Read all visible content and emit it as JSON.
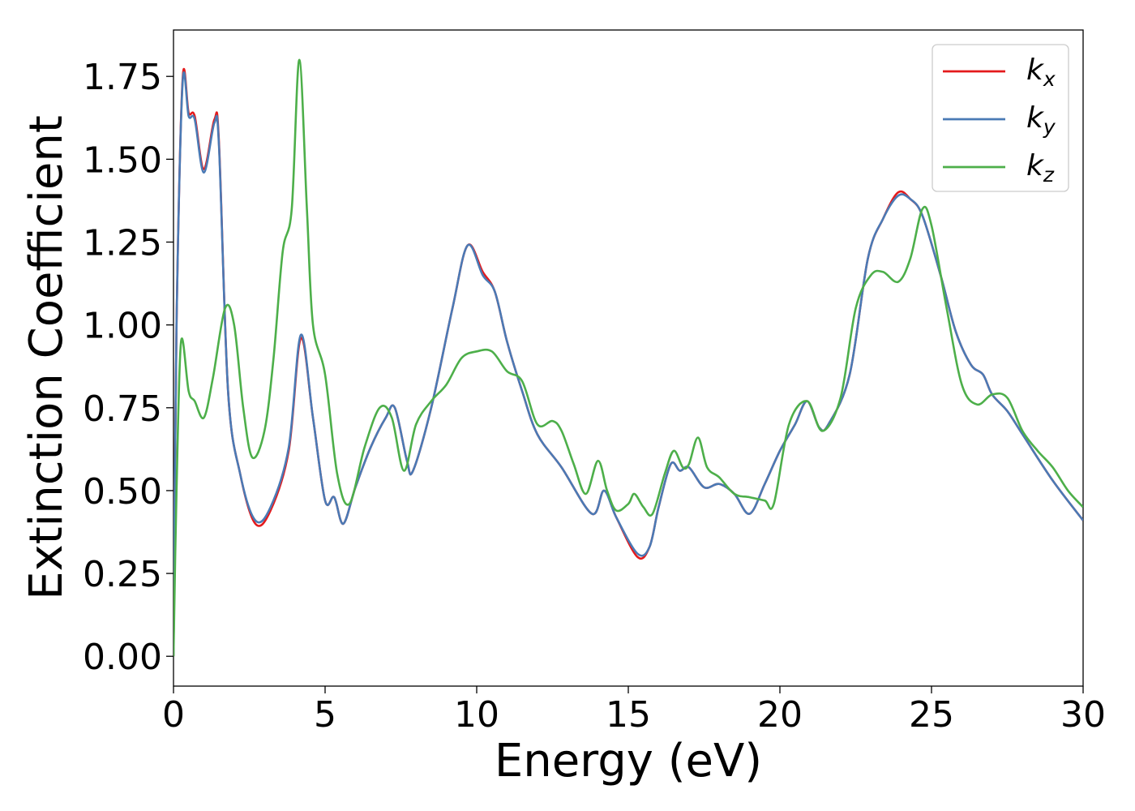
{
  "chart_data": {
    "type": "line",
    "title": "",
    "xlabel": "Energy (eV)",
    "ylabel": "Extinction Coefficient",
    "xlim": [
      0,
      30
    ],
    "ylim": [
      -0.09,
      1.89
    ],
    "xticks": [
      0,
      5,
      10,
      15,
      20,
      25,
      30
    ],
    "xtick_labels": [
      "0",
      "5",
      "10",
      "15",
      "20",
      "25",
      "30"
    ],
    "yticks": [
      0,
      0.25,
      0.5,
      0.75,
      1.0,
      1.25,
      1.5,
      1.75
    ],
    "ytick_labels": [
      "0.00",
      "0.25",
      "0.50",
      "0.75",
      "1.00",
      "1.25",
      "1.50",
      "1.75"
    ],
    "grid": false,
    "legend_position": "top-right",
    "series": [
      {
        "name": "k_x",
        "label_base": "k",
        "label_sub": "x",
        "color": "#e41a1c",
        "points": [
          [
            0,
            0
          ],
          [
            0.1,
            1.0
          ],
          [
            0.3,
            1.74
          ],
          [
            0.5,
            1.64
          ],
          [
            0.7,
            1.63
          ],
          [
            1.0,
            1.47
          ],
          [
            1.35,
            1.62
          ],
          [
            1.5,
            1.55
          ],
          [
            1.8,
            0.8
          ],
          [
            2.2,
            0.55
          ],
          [
            2.7,
            0.4
          ],
          [
            3.2,
            0.44
          ],
          [
            3.8,
            0.62
          ],
          [
            4.2,
            0.96
          ],
          [
            4.6,
            0.72
          ],
          [
            5.0,
            0.47
          ],
          [
            5.3,
            0.48
          ],
          [
            5.6,
            0.4
          ],
          [
            6.0,
            0.51
          ],
          [
            6.5,
            0.63
          ],
          [
            7.0,
            0.72
          ],
          [
            7.3,
            0.75
          ],
          [
            7.7,
            0.59
          ],
          [
            7.9,
            0.56
          ],
          [
            8.5,
            0.75
          ],
          [
            9.2,
            1.05
          ],
          [
            9.7,
            1.24
          ],
          [
            10.2,
            1.16
          ],
          [
            10.6,
            1.1
          ],
          [
            11.0,
            0.95
          ],
          [
            11.5,
            0.8
          ],
          [
            12.0,
            0.67
          ],
          [
            12.8,
            0.57
          ],
          [
            13.8,
            0.43
          ],
          [
            14.2,
            0.5
          ],
          [
            14.6,
            0.42
          ],
          [
            15.3,
            0.3
          ],
          [
            15.7,
            0.33
          ],
          [
            16.0,
            0.45
          ],
          [
            16.4,
            0.58
          ],
          [
            16.7,
            0.56
          ],
          [
            17.0,
            0.57
          ],
          [
            17.5,
            0.51
          ],
          [
            18.0,
            0.52
          ],
          [
            18.5,
            0.49
          ],
          [
            19.0,
            0.43
          ],
          [
            19.5,
            0.52
          ],
          [
            20.0,
            0.62
          ],
          [
            20.5,
            0.7
          ],
          [
            20.9,
            0.77
          ],
          [
            21.3,
            0.69
          ],
          [
            21.6,
            0.7
          ],
          [
            22.3,
            0.85
          ],
          [
            22.9,
            1.2
          ],
          [
            23.4,
            1.32
          ],
          [
            23.9,
            1.4
          ],
          [
            24.3,
            1.38
          ],
          [
            24.7,
            1.33
          ],
          [
            25.3,
            1.15
          ],
          [
            25.8,
            0.98
          ],
          [
            26.3,
            0.88
          ],
          [
            26.7,
            0.85
          ],
          [
            27.0,
            0.79
          ],
          [
            27.5,
            0.74
          ],
          [
            28.0,
            0.67
          ],
          [
            29.0,
            0.53
          ],
          [
            30.0,
            0.41
          ]
        ]
      },
      {
        "name": "k_y",
        "label_base": "k",
        "label_sub": "y",
        "color": "#4a7ab5",
        "points": [
          [
            0,
            0
          ],
          [
            0.1,
            1.0
          ],
          [
            0.3,
            1.73
          ],
          [
            0.5,
            1.63
          ],
          [
            0.7,
            1.62
          ],
          [
            1.0,
            1.46
          ],
          [
            1.35,
            1.61
          ],
          [
            1.5,
            1.54
          ],
          [
            1.8,
            0.8
          ],
          [
            2.2,
            0.55
          ],
          [
            2.7,
            0.41
          ],
          [
            3.2,
            0.45
          ],
          [
            3.8,
            0.63
          ],
          [
            4.2,
            0.97
          ],
          [
            4.6,
            0.72
          ],
          [
            5.0,
            0.47
          ],
          [
            5.3,
            0.48
          ],
          [
            5.6,
            0.4
          ],
          [
            6.0,
            0.51
          ],
          [
            6.5,
            0.63
          ],
          [
            7.0,
            0.72
          ],
          [
            7.3,
            0.75
          ],
          [
            7.7,
            0.59
          ],
          [
            7.9,
            0.56
          ],
          [
            8.5,
            0.75
          ],
          [
            9.2,
            1.05
          ],
          [
            9.7,
            1.24
          ],
          [
            10.2,
            1.15
          ],
          [
            10.6,
            1.1
          ],
          [
            11.0,
            0.95
          ],
          [
            11.5,
            0.8
          ],
          [
            12.0,
            0.67
          ],
          [
            12.8,
            0.57
          ],
          [
            13.8,
            0.43
          ],
          [
            14.2,
            0.5
          ],
          [
            14.6,
            0.42
          ],
          [
            15.3,
            0.31
          ],
          [
            15.7,
            0.33
          ],
          [
            16.0,
            0.45
          ],
          [
            16.4,
            0.58
          ],
          [
            16.7,
            0.56
          ],
          [
            17.0,
            0.57
          ],
          [
            17.5,
            0.51
          ],
          [
            18.0,
            0.52
          ],
          [
            18.5,
            0.49
          ],
          [
            19.0,
            0.43
          ],
          [
            19.5,
            0.52
          ],
          [
            20.0,
            0.62
          ],
          [
            20.5,
            0.7
          ],
          [
            20.9,
            0.77
          ],
          [
            21.3,
            0.69
          ],
          [
            21.6,
            0.7
          ],
          [
            22.3,
            0.85
          ],
          [
            22.9,
            1.2
          ],
          [
            23.4,
            1.32
          ],
          [
            23.9,
            1.39
          ],
          [
            24.3,
            1.38
          ],
          [
            24.7,
            1.33
          ],
          [
            25.3,
            1.15
          ],
          [
            25.8,
            0.98
          ],
          [
            26.3,
            0.88
          ],
          [
            26.7,
            0.85
          ],
          [
            27.0,
            0.79
          ],
          [
            27.5,
            0.74
          ],
          [
            28.0,
            0.67
          ],
          [
            29.0,
            0.53
          ],
          [
            30.0,
            0.41
          ]
        ]
      },
      {
        "name": "k_z",
        "label_base": "k",
        "label_sub": "z",
        "color": "#4daf4a",
        "points": [
          [
            0,
            0
          ],
          [
            0.1,
            0.5
          ],
          [
            0.25,
            0.95
          ],
          [
            0.5,
            0.8
          ],
          [
            0.7,
            0.77
          ],
          [
            1.0,
            0.72
          ],
          [
            1.3,
            0.84
          ],
          [
            1.7,
            1.05
          ],
          [
            2.0,
            1.0
          ],
          [
            2.3,
            0.75
          ],
          [
            2.6,
            0.6
          ],
          [
            3.0,
            0.68
          ],
          [
            3.3,
            0.9
          ],
          [
            3.6,
            1.22
          ],
          [
            3.9,
            1.35
          ],
          [
            4.15,
            1.8
          ],
          [
            4.4,
            1.35
          ],
          [
            4.6,
            1.0
          ],
          [
            5.0,
            0.85
          ],
          [
            5.4,
            0.55
          ],
          [
            5.8,
            0.46
          ],
          [
            6.3,
            0.63
          ],
          [
            6.8,
            0.75
          ],
          [
            7.2,
            0.72
          ],
          [
            7.6,
            0.56
          ],
          [
            8.0,
            0.7
          ],
          [
            8.5,
            0.77
          ],
          [
            9.0,
            0.82
          ],
          [
            9.5,
            0.9
          ],
          [
            10.0,
            0.92
          ],
          [
            10.5,
            0.92
          ],
          [
            11.0,
            0.86
          ],
          [
            11.5,
            0.83
          ],
          [
            12.0,
            0.7
          ],
          [
            12.5,
            0.71
          ],
          [
            12.8,
            0.68
          ],
          [
            13.2,
            0.58
          ],
          [
            13.6,
            0.49
          ],
          [
            14.0,
            0.59
          ],
          [
            14.3,
            0.5
          ],
          [
            14.6,
            0.44
          ],
          [
            15.0,
            0.46
          ],
          [
            15.2,
            0.49
          ],
          [
            15.5,
            0.45
          ],
          [
            15.8,
            0.43
          ],
          [
            16.2,
            0.55
          ],
          [
            16.5,
            0.62
          ],
          [
            16.8,
            0.57
          ],
          [
            17.0,
            0.58
          ],
          [
            17.3,
            0.66
          ],
          [
            17.6,
            0.57
          ],
          [
            18.0,
            0.54
          ],
          [
            18.5,
            0.49
          ],
          [
            19.0,
            0.48
          ],
          [
            19.5,
            0.47
          ],
          [
            19.8,
            0.46
          ],
          [
            20.3,
            0.7
          ],
          [
            20.9,
            0.77
          ],
          [
            21.4,
            0.68
          ],
          [
            22.0,
            0.78
          ],
          [
            22.5,
            1.05
          ],
          [
            23.0,
            1.15
          ],
          [
            23.4,
            1.16
          ],
          [
            23.9,
            1.13
          ],
          [
            24.3,
            1.2
          ],
          [
            24.7,
            1.35
          ],
          [
            25.0,
            1.3
          ],
          [
            25.5,
            1.05
          ],
          [
            26.0,
            0.82
          ],
          [
            26.5,
            0.76
          ],
          [
            27.0,
            0.79
          ],
          [
            27.5,
            0.78
          ],
          [
            28.0,
            0.68
          ],
          [
            28.5,
            0.62
          ],
          [
            29.0,
            0.57
          ],
          [
            29.5,
            0.5
          ],
          [
            30.0,
            0.45
          ]
        ]
      }
    ]
  }
}
